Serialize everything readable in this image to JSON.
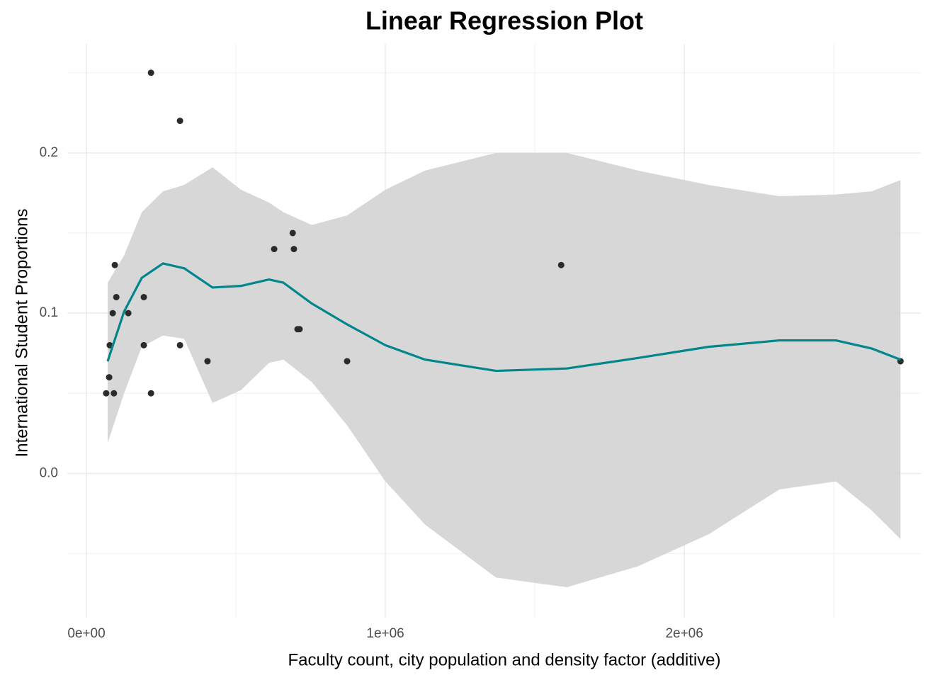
{
  "chart_data": {
    "type": "scatter",
    "title": "Linear Regression Plot",
    "x_label": "Faculty count, city population and density factor (additive)",
    "y_label": "International Student Proportions",
    "xlim": [
      -64000,
      2791000
    ],
    "ylim": [
      -0.09,
      0.268
    ],
    "xticks": [
      {
        "value": 0,
        "label": "0e+00"
      },
      {
        "value": 1000000,
        "label": "1e+06"
      },
      {
        "value": 2000000,
        "label": "2e+06"
      }
    ],
    "yticks": [
      {
        "value": 0,
        "label": "0.0"
      },
      0.1,
      0.2
    ],
    "minor_xticks": [
      500000,
      1500000,
      2500000
    ],
    "minor_yticks": [
      -0.05,
      0.05,
      0.15,
      0.25
    ],
    "grid": true,
    "color": "#2b2b2b",
    "x": [
      66000,
      76000,
      78000,
      88000,
      92000,
      95000,
      100000,
      140000,
      192000,
      192000,
      216000,
      216000,
      313000,
      313000,
      405000,
      628000,
      690000,
      694000,
      706000,
      713000,
      872000,
      1588000,
      2723000
    ],
    "values": [
      0.05,
      0.06,
      0.08,
      0.1,
      0.05,
      0.13,
      0.11,
      0.1,
      0.08,
      0.11,
      0.25,
      0.05,
      0.22,
      0.08,
      0.07,
      0.14,
      0.15,
      0.14,
      0.09,
      0.09,
      0.07,
      0.13,
      0.07
    ],
    "fit": {
      "color": "#00868b",
      "band_color": "#d3d3d3",
      "x": [
        71000,
        126000,
        185000,
        256000,
        327000,
        422000,
        517000,
        611000,
        659000,
        754000,
        872000,
        1000000,
        1133000,
        1370000,
        1607000,
        1844000,
        2081000,
        2318000,
        2507000,
        2626000,
        2723000
      ],
      "values": [
        0.07,
        0.101,
        0.122,
        0.131,
        0.128,
        0.116,
        0.117,
        0.121,
        0.119,
        0.106,
        0.093,
        0.08,
        0.071,
        0.064,
        0.0655,
        0.072,
        0.079,
        0.083,
        0.083,
        0.078,
        0.071
      ],
      "lower": [
        0.019,
        0.05,
        0.079,
        0.086,
        0.084,
        0.044,
        0.052,
        0.069,
        0.071,
        0.057,
        0.03,
        -0.005,
        -0.032,
        -0.065,
        -0.071,
        -0.058,
        -0.038,
        -0.01,
        -0.005,
        -0.023,
        -0.041
      ],
      "upper": [
        0.119,
        0.136,
        0.163,
        0.176,
        0.18,
        0.191,
        0.177,
        0.169,
        0.163,
        0.155,
        0.161,
        0.177,
        0.189,
        0.2,
        0.2,
        0.189,
        0.18,
        0.173,
        0.174,
        0.176,
        0.183
      ]
    }
  }
}
